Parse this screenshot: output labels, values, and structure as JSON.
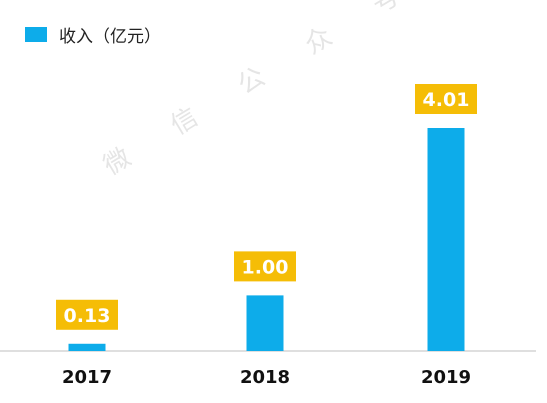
{
  "legend": {
    "label": "收入（亿元）"
  },
  "colors": {
    "bar": "#0dacea",
    "label_box": "#f5bd06",
    "label_text": "#ffffff",
    "axis": "#bfbfbf",
    "tick": "#111111"
  },
  "watermark": "微 信 公 众 号 ： 银 数 观 卡",
  "chart_data": {
    "type": "bar",
    "categories": [
      "2017",
      "2018",
      "2019"
    ],
    "series": [
      {
        "name": "收入（亿元）",
        "values": [
          0.13,
          1.0,
          4.01
        ]
      }
    ],
    "data_labels": [
      "0.13",
      "1.00",
      "4.01"
    ],
    "title": "",
    "xlabel": "",
    "ylabel": "",
    "ylim": [
      0,
      4.01
    ],
    "grid": false,
    "legend_position": "top-left"
  }
}
